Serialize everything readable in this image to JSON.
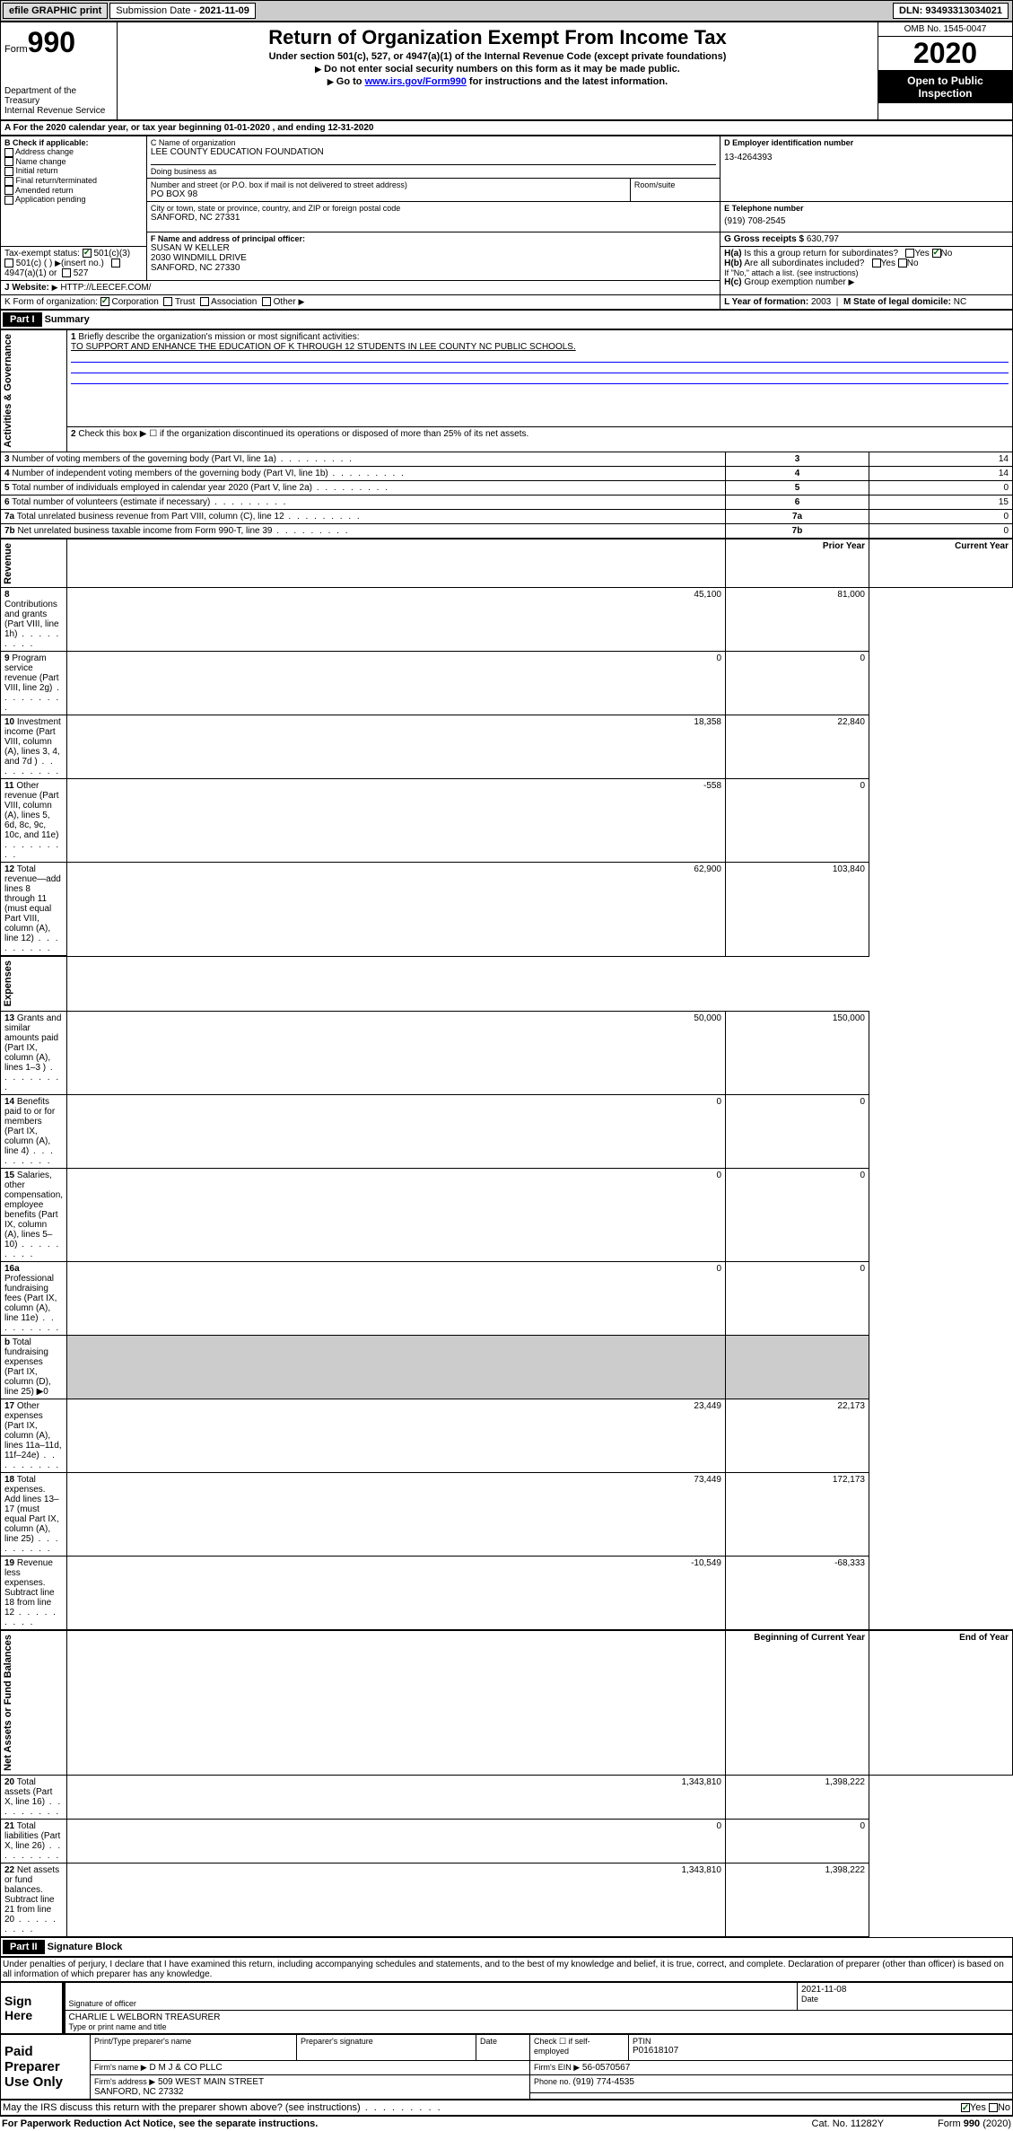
{
  "topbar": {
    "efile": "efile GRAPHIC print",
    "sub_label": "Submission Date - ",
    "sub_date": "2021-11-09",
    "dln_label": "DLN: ",
    "dln": "93493313034021"
  },
  "header": {
    "form_word": "Form",
    "form_no": "990",
    "dept": "Department of the Treasury\nInternal Revenue Service",
    "title": "Return of Organization Exempt From Income Tax",
    "sub1": "Under section 501(c), 527, or 4947(a)(1) of the Internal Revenue Code (except private foundations)",
    "sub2": "Do not enter social security numbers on this form as it may be made public.",
    "sub3": "Go to ",
    "link": "www.irs.gov/Form990",
    "sub3b": " for instructions and the latest information.",
    "omb": "OMB No. 1545-0047",
    "year": "2020",
    "inspect": "Open to Public Inspection"
  },
  "rowA": "For the 2020 calendar year, or tax year beginning 01-01-2020    , and ending 12-31-2020",
  "boxB": {
    "hdr": "B Check if applicable:",
    "items": [
      "Address change",
      "Name change",
      "Initial return",
      "Final return/terminated",
      "Amended return",
      "Application pending"
    ]
  },
  "boxC": {
    "label": "C Name of organization",
    "name": "LEE COUNTY EDUCATION FOUNDATION",
    "dba": "Doing business as",
    "addr_label": "Number and street (or P.O. box if mail is not delivered to street address)",
    "room": "Room/suite",
    "addr": "PO BOX 98",
    "city_label": "City or town, state or province, country, and ZIP or foreign postal code",
    "city": "SANFORD, NC  27331"
  },
  "boxD": {
    "label": "D Employer identification number",
    "val": "13-4264393"
  },
  "boxE": {
    "label": "E Telephone number",
    "val": "(919) 708-2545"
  },
  "boxG": {
    "label": "G Gross receipts $ ",
    "val": "630,797"
  },
  "boxF": {
    "label": "F Name and address of principal officer:",
    "name": "SUSAN W KELLER",
    "addr1": "2030 WINDMILL DRIVE",
    "addr2": "SANFORD, NC  27330"
  },
  "boxH": {
    "a": "Is this a group return for subordinates?",
    "b": "Are all subordinates included?",
    "note": "If \"No,\" attach a list. (see instructions)",
    "c": "Group exemption number"
  },
  "boxI": {
    "label": "Tax-exempt status:",
    "opts": [
      "501(c)(3)",
      "501(c) (   )",
      "(insert no.)",
      "4947(a)(1) or",
      "527"
    ]
  },
  "boxJ": {
    "label": "Website:",
    "val": "HTTP://LEECEF.COM/"
  },
  "boxK": {
    "label": "K Form of organization:",
    "opts": [
      "Corporation",
      "Trust",
      "Association",
      "Other"
    ]
  },
  "boxL": {
    "label": "L Year of formation: ",
    "val": "2003"
  },
  "boxM": {
    "label": "M State of legal domicile: ",
    "val": "NC"
  },
  "part1": {
    "hdr": "Part I",
    "title": "Summary",
    "side_ag": "Activities & Governance",
    "side_rev": "Revenue",
    "side_exp": "Expenses",
    "side_na": "Net Assets or Fund Balances",
    "q1": "Briefly describe the organization's mission or most significant activities:",
    "q1_ans": "TO SUPPORT AND ENHANCE THE EDUCATION OF K THROUGH 12 STUDENTS IN LEE COUNTY NC PUBLIC SCHOOLS.",
    "q2": "Check this box ▶ ☐ if the organization discontinued its operations or disposed of more than 25% of its net assets.",
    "lines_ag": [
      {
        "n": "3",
        "t": "Number of voting members of the governing body (Part VI, line 1a)",
        "v": "14"
      },
      {
        "n": "4",
        "t": "Number of independent voting members of the governing body (Part VI, line 1b)",
        "v": "14"
      },
      {
        "n": "5",
        "t": "Total number of individuals employed in calendar year 2020 (Part V, line 2a)",
        "v": "0"
      },
      {
        "n": "6",
        "t": "Total number of volunteers (estimate if necessary)",
        "v": "15"
      },
      {
        "n": "7a",
        "t": "Total unrelated business revenue from Part VIII, column (C), line 12",
        "v": "0"
      },
      {
        "n": "7b",
        "t": "Net unrelated business taxable income from Form 990-T, line 39",
        "v": "0"
      }
    ],
    "col_prior": "Prior Year",
    "col_curr": "Current Year",
    "lines_rev": [
      {
        "n": "8",
        "t": "Contributions and grants (Part VIII, line 1h)",
        "p": "45,100",
        "c": "81,000"
      },
      {
        "n": "9",
        "t": "Program service revenue (Part VIII, line 2g)",
        "p": "0",
        "c": "0"
      },
      {
        "n": "10",
        "t": "Investment income (Part VIII, column (A), lines 3, 4, and 7d )",
        "p": "18,358",
        "c": "22,840"
      },
      {
        "n": "11",
        "t": "Other revenue (Part VIII, column (A), lines 5, 6d, 8c, 9c, 10c, and 11e)",
        "p": "-558",
        "c": "0"
      },
      {
        "n": "12",
        "t": "Total revenue—add lines 8 through 11 (must equal Part VIII, column (A), line 12)",
        "p": "62,900",
        "c": "103,840"
      }
    ],
    "lines_exp": [
      {
        "n": "13",
        "t": "Grants and similar amounts paid (Part IX, column (A), lines 1–3 )",
        "p": "50,000",
        "c": "150,000"
      },
      {
        "n": "14",
        "t": "Benefits paid to or for members (Part IX, column (A), line 4)",
        "p": "0",
        "c": "0"
      },
      {
        "n": "15",
        "t": "Salaries, other compensation, employee benefits (Part IX, column (A), lines 5–10)",
        "p": "0",
        "c": "0"
      },
      {
        "n": "16a",
        "t": "Professional fundraising fees (Part IX, column (A), line 11e)",
        "p": "0",
        "c": "0"
      },
      {
        "n": "b",
        "t": "Total fundraising expenses (Part IX, column (D), line 25) ▶0",
        "p": "",
        "c": "",
        "grey": true
      },
      {
        "n": "17",
        "t": "Other expenses (Part IX, column (A), lines 11a–11d, 11f–24e)",
        "p": "23,449",
        "c": "22,173"
      },
      {
        "n": "18",
        "t": "Total expenses. Add lines 13–17 (must equal Part IX, column (A), line 25)",
        "p": "73,449",
        "c": "172,173"
      },
      {
        "n": "19",
        "t": "Revenue less expenses. Subtract line 18 from line 12",
        "p": "-10,549",
        "c": "-68,333"
      }
    ],
    "col_beg": "Beginning of Current Year",
    "col_end": "End of Year",
    "lines_na": [
      {
        "n": "20",
        "t": "Total assets (Part X, line 16)",
        "p": "1,343,810",
        "c": "1,398,222"
      },
      {
        "n": "21",
        "t": "Total liabilities (Part X, line 26)",
        "p": "0",
        "c": "0"
      },
      {
        "n": "22",
        "t": "Net assets or fund balances. Subtract line 21 from line 20",
        "p": "1,343,810",
        "c": "1,398,222"
      }
    ]
  },
  "part2": {
    "hdr": "Part II",
    "title": "Signature Block",
    "decl": "Under penalties of perjury, I declare that I have examined this return, including accompanying schedules and statements, and to the best of my knowledge and belief, it is true, correct, and complete. Declaration of preparer (other than officer) is based on all information of which preparer has any knowledge.",
    "sign_here": "Sign Here",
    "sig_officer": "Signature of officer",
    "date": "Date",
    "date_val": "2021-11-08",
    "name_title": "CHARLIE L WELBORN  TREASURER",
    "type_name": "Type or print name and title",
    "paid": "Paid Preparer Use Only",
    "prep_name": "Print/Type preparer's name",
    "prep_sig": "Preparer's signature",
    "prep_date": "Date",
    "check_self": "Check ☐ if self-employed",
    "ptin_label": "PTIN",
    "ptin": "P01618107",
    "firm_name_label": "Firm's name    ▶",
    "firm_name": "D M J & CO PLLC",
    "firm_ein_label": "Firm's EIN ▶",
    "firm_ein": "56-0570567",
    "firm_addr_label": "Firm's address ▶",
    "firm_addr": "509 WEST MAIN STREET",
    "firm_city": "SANFORD, NC  27332",
    "phone_label": "Phone no. ",
    "phone": "(919) 774-4535",
    "irs_discuss": "May the IRS discuss this return with the preparer shown above? (see instructions)"
  },
  "footer": {
    "pra": "For Paperwork Reduction Act Notice, see the separate instructions.",
    "cat": "Cat. No. 11282Y",
    "form": "Form 990 (2020)"
  },
  "colors": {
    "black": "#000000",
    "white": "#ffffff",
    "grey_bg": "#cccccc",
    "link_blue": "#0000ff",
    "check_green": "#006600"
  }
}
